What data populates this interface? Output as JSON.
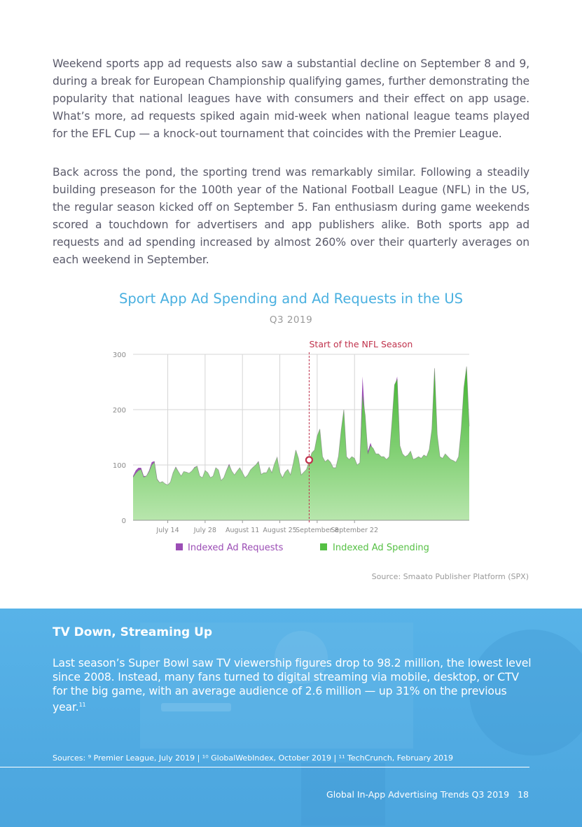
{
  "paragraphs": {
    "p1": "Weekend sports app ad requests also saw a substantial decline on September 8 and 9, during a break for European Championship qualifying games, further demonstrating the popularity that national leagues have with consumers and their effect on app usage. What’s more, ad requests spiked again mid-week when national league teams played for the EFL Cup — a knock-out tournament that coincides with the Premier League.",
    "p2": "Back across the pond, the sporting trend was remarkably similar. Following a steadily building preseason for the 100th year of the National Football League (NFL) in the US, the regular season kicked off on September 5. Fan enthusiasm during game weekends scored a touchdown for advertisers and app publishers alike. Both sports app ad requests and ad spending increased by almost 260% over their quarterly averages on each weekend in September."
  },
  "chart_data": {
    "type": "area",
    "title": "Sport App Ad Spending and Ad Requests in the US",
    "subtitle": "Q3 2019",
    "annotation": "Start of the NFL Season",
    "annotation_x_index": 66,
    "y_ticks": [
      "0",
      "100",
      "200",
      "300"
    ],
    "ylim": [
      0,
      300
    ],
    "x_tick_labels": [
      {
        "label": "July 14",
        "index": 13
      },
      {
        "label": "July 28",
        "index": 27
      },
      {
        "label": "August 11",
        "index": 41
      },
      {
        "label": "August 25",
        "index": 55
      },
      {
        "label": "September 8",
        "index": 69
      },
      {
        "label": "September 22",
        "index": 83
      }
    ],
    "grid": true,
    "legend_position": "bottom",
    "colors": {
      "requests": "#9b4db5",
      "spending": "#55c044",
      "annotation": "#c0334d"
    },
    "series": [
      {
        "name": "Indexed Ad Requests",
        "values": [
          80,
          90,
          95,
          95,
          80,
          80,
          90,
          105,
          107,
          75,
          68,
          70,
          65,
          63,
          68,
          85,
          97,
          88,
          78,
          88,
          87,
          84,
          88,
          96,
          98,
          80,
          75,
          90,
          85,
          75,
          78,
          95,
          90,
          70,
          75,
          90,
          102,
          88,
          80,
          88,
          95,
          85,
          75,
          80,
          90,
          95,
          100,
          107,
          82,
          85,
          85,
          95,
          85,
          100,
          113,
          85,
          75,
          85,
          90,
          80,
          100,
          125,
          110,
          80,
          85,
          90,
          105,
          120,
          125,
          150,
          160,
          110,
          100,
          105,
          100,
          90,
          90,
          110,
          155,
          195,
          110,
          105,
          110,
          110,
          95,
          100,
          260,
          180,
          125,
          140,
          125,
          115,
          120,
          110,
          110,
          105,
          110,
          170,
          240,
          260,
          130,
          115,
          110,
          115,
          120,
          105,
          110,
          112,
          108,
          115,
          110,
          122,
          160,
          270,
          150,
          110,
          108,
          115,
          110,
          105,
          100,
          100,
          110,
          160,
          235,
          150,
          100
        ]
      },
      {
        "name": "Indexed Ad Spending",
        "values": [
          78,
          85,
          90,
          92,
          78,
          80,
          88,
          100,
          105,
          74,
          68,
          70,
          66,
          64,
          69,
          86,
          96,
          88,
          80,
          88,
          87,
          85,
          89,
          95,
          98,
          80,
          77,
          90,
          86,
          77,
          80,
          95,
          91,
          72,
          77,
          90,
          100,
          89,
          82,
          89,
          95,
          86,
          77,
          82,
          91,
          96,
          100,
          106,
          83,
          86,
          86,
          96,
          86,
          102,
          114,
          87,
          77,
          87,
          92,
          82,
          102,
          127,
          112,
          82,
          87,
          92,
          107,
          122,
          127,
          152,
          165,
          115,
          106,
          110,
          105,
          95,
          95,
          116,
          163,
          200,
          115,
          110,
          115,
          112,
          100,
          104,
          225,
          190,
          120,
          135,
          130,
          120,
          120,
          115,
          115,
          110,
          115,
          175,
          245,
          255,
          135,
          120,
          115,
          118,
          125,
          110,
          112,
          115,
          112,
          118,
          115,
          128,
          165,
          275,
          155,
          115,
          112,
          120,
          115,
          110,
          108,
          105,
          115,
          165,
          240,
          278,
          170
        ]
      }
    ]
  },
  "legend": {
    "requests_label": "Indexed Ad Requests",
    "spending_label": "Indexed Ad Spending"
  },
  "source_note": "Source: Smaato Publisher Platform (SPX)",
  "band": {
    "heading": "TV Down, Streaming Up",
    "body": "Last season’s Super Bowl saw TV viewership figures drop to 98.2 million, the lowest level since 2008. Instead, many fans turned to digital streaming via mobile, desktop, or CTV for the big game, with an average audience of 2.6 million — up 31% on the previous year.",
    "body_ref": "11",
    "sources": "Sources: ⁹ Premier League, July 2019 | ¹⁰ GlobalWebIndex, October 2019 | ¹¹ TechCrunch, February 2019",
    "footer_title": "Global In-App Advertising Trends Q3 2019",
    "page_number": "18"
  }
}
